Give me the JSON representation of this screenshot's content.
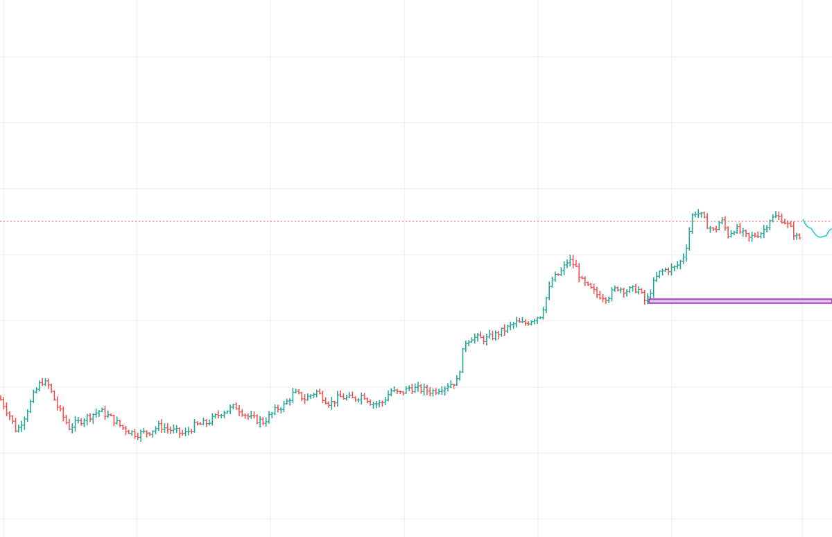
{
  "chart_data": {
    "type": "ohlc",
    "style": "hlc-bars",
    "xlim": [
      0,
      600
    ],
    "ylim": [
      0,
      774
    ],
    "grid": true,
    "colors": {
      "up": "#26a69a",
      "down": "#ef5350",
      "grid": "#e9ecf1",
      "price_line": "#f0564a",
      "zone_stroke": "#9c27b0",
      "zone_fill": "#e1bee7",
      "projection": "#26c6da"
    },
    "series": [],
    "price_line": {
      "value": 455
    },
    "zone": {
      "x_start": 468,
      "x_end": 600,
      "y_low": 337,
      "y_high": 343
    },
    "projection": {
      "points": [
        [
          579,
          458
        ],
        [
          585,
          445
        ],
        [
          592,
          432
        ],
        [
          596,
          434
        ],
        [
          600,
          444
        ]
      ]
    },
    "keyframes": [
      [
        0,
        200
      ],
      [
        7,
        175
      ],
      [
        12,
        152
      ],
      [
        18,
        175
      ],
      [
        25,
        208
      ],
      [
        30,
        225
      ],
      [
        35,
        218
      ],
      [
        42,
        185
      ],
      [
        50,
        158
      ],
      [
        60,
        170
      ],
      [
        72,
        182
      ],
      [
        80,
        172
      ],
      [
        88,
        158
      ],
      [
        98,
        148
      ],
      [
        108,
        152
      ],
      [
        115,
        160
      ],
      [
        125,
        153
      ],
      [
        133,
        148
      ],
      [
        140,
        160
      ],
      [
        150,
        165
      ],
      [
        160,
        180
      ],
      [
        170,
        188
      ],
      [
        180,
        172
      ],
      [
        190,
        166
      ],
      [
        200,
        185
      ],
      [
        205,
        190
      ],
      [
        212,
        208
      ],
      [
        220,
        199
      ],
      [
        228,
        210
      ],
      [
        238,
        192
      ],
      [
        245,
        202
      ],
      [
        255,
        199
      ],
      [
        262,
        205
      ],
      [
        268,
        193
      ],
      [
        275,
        192
      ],
      [
        282,
        211
      ],
      [
        288,
        206
      ],
      [
        295,
        215
      ],
      [
        302,
        213
      ],
      [
        312,
        210
      ],
      [
        322,
        218
      ],
      [
        330,
        225
      ],
      [
        335,
        280
      ],
      [
        340,
        288
      ],
      [
        350,
        285
      ],
      [
        358,
        292
      ],
      [
        365,
        300
      ],
      [
        372,
        309
      ],
      [
        378,
        307
      ],
      [
        385,
        315
      ],
      [
        390,
        320
      ],
      [
        398,
        370
      ],
      [
        405,
        383
      ],
      [
        410,
        400
      ],
      [
        415,
        390
      ],
      [
        420,
        367
      ],
      [
        430,
        350
      ],
      [
        438,
        345
      ],
      [
        445,
        360
      ],
      [
        452,
        355
      ],
      [
        460,
        358
      ],
      [
        466,
        337
      ],
      [
        470,
        360
      ],
      [
        475,
        380
      ],
      [
        480,
        385
      ],
      [
        487,
        388
      ],
      [
        492,
        400
      ],
      [
        495,
        420
      ],
      [
        500,
        470
      ],
      [
        505,
        465
      ],
      [
        510,
        450
      ],
      [
        515,
        440
      ],
      [
        520,
        458
      ],
      [
        525,
        436
      ],
      [
        530,
        445
      ],
      [
        535,
        438
      ],
      [
        540,
        430
      ],
      [
        545,
        436
      ],
      [
        550,
        440
      ],
      [
        555,
        458
      ],
      [
        560,
        462
      ],
      [
        565,
        457
      ],
      [
        570,
        445
      ],
      [
        576,
        428
      ],
      [
        578,
        438
      ]
    ]
  }
}
